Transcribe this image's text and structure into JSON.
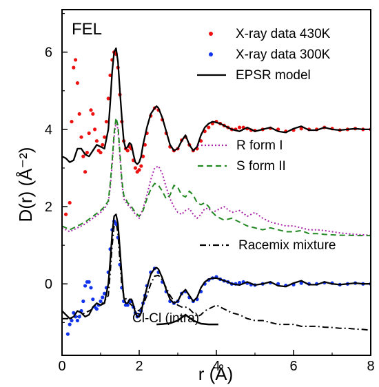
{
  "chart_data": {
    "type": "line",
    "panel_label": "FEL",
    "xlabel": "r (Å)",
    "ylabel": "D(r) (Å⁻²)",
    "xlim": [
      0,
      8
    ],
    "ylim": [
      -1.85,
      7.1
    ],
    "xticks": [
      0,
      2,
      4,
      6,
      8
    ],
    "yticks": [
      0,
      2,
      4,
      6
    ],
    "legend_upper": [
      {
        "label": "X-ray data 430K",
        "marker": "dot",
        "color": "#ee1111"
      },
      {
        "label": "X-ray data 300K",
        "marker": "dot",
        "color": "#1133ee"
      },
      {
        "label": "EPSR model",
        "line": "solid",
        "color": "#000000"
      }
    ],
    "legend_middle": [
      {
        "label": "R form I",
        "line": "dotted",
        "color": "#aa22aa"
      },
      {
        "label": "S form II",
        "line": "dashed",
        "color": "#228822"
      }
    ],
    "legend_lower": [
      {
        "label": "Racemix mixture",
        "line": "dashdot",
        "color": "#000000"
      }
    ],
    "annotation": "Cl-Cl (intra)",
    "cl_cl_curve": {
      "x": [
        2.45,
        2.6,
        2.8,
        3.0,
        3.2,
        3.4,
        3.6,
        3.8,
        4.05
      ],
      "y": [
        -1.05,
        -1.04,
        -1.02,
        -0.95,
        -0.8,
        -0.95,
        -1.03,
        -1.05,
        -1.05
      ]
    },
    "series": [
      {
        "name": "X-ray data 430K",
        "color": "#ee1111",
        "style": "dots",
        "x": [
          0.1,
          0.2,
          0.25,
          0.3,
          0.35,
          0.4,
          0.45,
          0.5,
          0.55,
          0.6,
          0.65,
          0.7,
          0.75,
          0.8,
          0.85,
          0.9,
          0.95,
          1.0,
          1.05,
          1.1,
          1.15,
          1.2,
          1.25,
          1.3,
          1.35,
          1.4,
          1.45,
          1.5,
          1.55,
          1.6,
          1.65,
          1.7,
          1.75,
          1.8,
          1.85,
          1.9,
          1.95,
          2.0,
          2.05,
          2.1,
          2.15,
          2.2,
          2.3,
          2.4,
          2.5,
          2.6,
          2.7,
          2.8,
          2.9,
          3.0,
          3.1,
          3.2,
          3.3,
          3.4,
          3.5,
          3.6,
          3.7,
          3.8,
          3.9,
          4.0,
          4.1,
          4.2,
          4.3,
          4.4,
          4.5,
          4.6,
          4.7,
          4.8,
          4.9,
          5.0,
          5.2,
          5.4,
          5.6,
          5.8,
          6.0,
          6.2,
          6.4,
          6.6,
          6.8,
          7.0,
          7.2,
          7.4,
          7.6,
          7.8,
          8.0
        ],
        "y": [
          1.8,
          2.1,
          4.2,
          5.6,
          5.8,
          5.2,
          4.4,
          3.8,
          3.3,
          2.9,
          3.4,
          3.9,
          4.5,
          4.4,
          4.0,
          3.7,
          3.45,
          3.4,
          3.6,
          3.8,
          4.2,
          4.8,
          5.4,
          5.8,
          6.0,
          5.95,
          5.6,
          4.9,
          4.2,
          3.7,
          3.5,
          3.45,
          3.55,
          3.5,
          3.2,
          3.0,
          2.9,
          2.95,
          3.05,
          3.3,
          3.6,
          3.9,
          4.35,
          4.55,
          4.5,
          4.25,
          3.9,
          3.55,
          3.45,
          3.5,
          3.72,
          3.8,
          3.6,
          3.45,
          3.5,
          3.7,
          3.95,
          4.05,
          4.15,
          4.2,
          4.15,
          4.1,
          4.05,
          4.0,
          4.0,
          4.05,
          4.05,
          4.02,
          3.98,
          3.97,
          4.0,
          4.03,
          4.0,
          3.95,
          3.98,
          4.02,
          4.0,
          4.0,
          4.05,
          4.02,
          3.98,
          4.0,
          4.02,
          4.0,
          4.0
        ]
      },
      {
        "name": "X-ray data 300K",
        "color": "#1133ee",
        "style": "dots",
        "x": [
          0.15,
          0.2,
          0.25,
          0.3,
          0.35,
          0.4,
          0.45,
          0.5,
          0.55,
          0.6,
          0.65,
          0.7,
          0.75,
          0.8,
          0.85,
          0.9,
          0.95,
          1.0,
          1.05,
          1.1,
          1.15,
          1.2,
          1.25,
          1.3,
          1.35,
          1.4,
          1.45,
          1.5,
          1.55,
          1.6,
          1.65,
          1.7,
          1.75,
          1.8,
          1.85,
          1.9,
          1.95,
          2.0,
          2.05,
          2.1,
          2.15,
          2.2,
          2.3,
          2.4,
          2.5,
          2.6,
          2.7,
          2.8,
          2.9,
          3.0,
          3.1,
          3.2,
          3.3,
          3.4,
          3.5,
          3.6,
          3.7,
          3.8,
          3.9,
          4.0,
          4.1,
          4.2,
          4.3,
          4.4,
          4.5,
          4.6,
          4.7,
          4.8,
          4.9,
          5.0,
          5.2,
          5.4,
          5.6,
          5.8,
          6.0,
          6.2,
          6.4,
          6.6,
          6.8,
          7.0,
          7.2,
          7.4,
          7.6,
          7.8,
          8.0
        ],
        "y": [
          -1.3,
          -1.05,
          -0.95,
          -0.75,
          -0.85,
          -0.95,
          -0.85,
          -0.7,
          -0.45,
          -0.05,
          0.05,
          0.05,
          -0.1,
          -0.4,
          -0.6,
          -0.65,
          -0.55,
          -0.45,
          -0.35,
          -0.25,
          -0.1,
          0.3,
          0.9,
          1.4,
          1.62,
          1.55,
          1.2,
          0.5,
          -0.1,
          -0.45,
          -0.55,
          -0.55,
          -0.45,
          -0.45,
          -0.6,
          -0.75,
          -0.85,
          -0.8,
          -0.7,
          -0.5,
          -0.3,
          -0.05,
          0.3,
          0.4,
          0.3,
          0.05,
          -0.2,
          -0.45,
          -0.5,
          -0.45,
          -0.25,
          -0.2,
          -0.35,
          -0.45,
          -0.4,
          -0.2,
          0.0,
          0.1,
          0.15,
          0.18,
          0.12,
          0.08,
          0.05,
          0.0,
          0.0,
          0.03,
          0.05,
          0.02,
          -0.02,
          -0.03,
          0.0,
          0.03,
          0.0,
          -0.04,
          -0.02,
          0.02,
          0.0,
          0.0,
          0.03,
          0.02,
          -0.02,
          0.0,
          0.02,
          0.0,
          0.0
        ]
      },
      {
        "name": "EPSR model",
        "color": "#000000",
        "style": "solid",
        "x": [
          0.0,
          0.1,
          0.2,
          0.3,
          0.4,
          0.5,
          0.6,
          0.7,
          0.8,
          0.9,
          1.0,
          1.1,
          1.2,
          1.25,
          1.3,
          1.35,
          1.4,
          1.45,
          1.5,
          1.55,
          1.6,
          1.65,
          1.7,
          1.75,
          1.8,
          1.85,
          1.9,
          1.95,
          2.0,
          2.05,
          2.1,
          2.2,
          2.3,
          2.4,
          2.45,
          2.5,
          2.6,
          2.7,
          2.8,
          2.9,
          3.0,
          3.1,
          3.2,
          3.3,
          3.4,
          3.5,
          3.6,
          3.7,
          3.8,
          3.9,
          4.0,
          4.1,
          4.2,
          4.3,
          4.4,
          4.6,
          4.8,
          5.0,
          5.2,
          5.4,
          5.6,
          5.8,
          6.0,
          6.2,
          6.4,
          6.6,
          6.8,
          7.0,
          7.2,
          7.4,
          7.6,
          7.8,
          8.0
        ],
        "y": [
          3.3,
          3.25,
          3.15,
          3.2,
          3.5,
          3.5,
          3.35,
          3.3,
          3.45,
          3.6,
          3.55,
          3.5,
          4.0,
          4.7,
          5.5,
          6.0,
          6.1,
          5.75,
          5.0,
          4.3,
          3.7,
          3.5,
          3.55,
          3.65,
          3.6,
          3.35,
          3.15,
          3.1,
          3.15,
          3.3,
          3.6,
          4.05,
          4.4,
          4.55,
          4.6,
          4.55,
          4.3,
          3.95,
          3.6,
          3.45,
          3.5,
          3.7,
          3.85,
          3.6,
          3.45,
          3.55,
          3.85,
          4.05,
          4.15,
          4.2,
          4.18,
          4.15,
          4.1,
          4.05,
          4.0,
          3.95,
          4.05,
          3.95,
          4.0,
          4.05,
          3.95,
          3.92,
          4.02,
          4.08,
          3.98,
          3.98,
          4.05,
          4.0,
          3.98,
          4.0,
          4.02,
          4.0,
          4.0
        ]
      },
      {
        "name": "EPSR model",
        "color": "#000000",
        "style": "solid",
        "x": [
          0.0,
          0.1,
          0.2,
          0.3,
          0.4,
          0.5,
          0.6,
          0.7,
          0.8,
          0.9,
          1.0,
          1.1,
          1.2,
          1.25,
          1.3,
          1.35,
          1.4,
          1.45,
          1.5,
          1.55,
          1.6,
          1.65,
          1.7,
          1.75,
          1.8,
          1.85,
          1.9,
          1.95,
          2.0,
          2.05,
          2.1,
          2.2,
          2.3,
          2.4,
          2.45,
          2.5,
          2.6,
          2.7,
          2.8,
          2.9,
          3.0,
          3.1,
          3.2,
          3.3,
          3.4,
          3.5,
          3.6,
          3.7,
          3.8,
          3.9,
          4.0,
          4.1,
          4.2,
          4.3,
          4.4,
          4.6,
          4.8,
          5.0,
          5.2,
          5.4,
          5.6,
          5.8,
          6.0,
          6.2,
          6.4,
          6.6,
          6.8,
          7.0,
          7.2,
          7.4,
          7.6,
          7.8,
          8.0
        ],
        "y": [
          -0.7,
          -0.8,
          -0.9,
          -0.85,
          -0.7,
          -0.75,
          -0.85,
          -0.8,
          -0.6,
          -0.5,
          -0.55,
          -0.5,
          0.0,
          0.6,
          1.3,
          1.75,
          1.8,
          1.55,
          0.9,
          0.2,
          -0.35,
          -0.5,
          -0.5,
          -0.4,
          -0.4,
          -0.55,
          -0.75,
          -0.85,
          -0.85,
          -0.75,
          -0.5,
          -0.1,
          0.25,
          0.4,
          0.42,
          0.38,
          0.15,
          -0.15,
          -0.4,
          -0.5,
          -0.45,
          -0.25,
          -0.15,
          -0.3,
          -0.45,
          -0.35,
          -0.1,
          0.05,
          0.12,
          0.15,
          0.15,
          0.12,
          0.08,
          0.05,
          0.0,
          -0.03,
          0.05,
          -0.03,
          0.0,
          0.05,
          -0.05,
          -0.07,
          0.02,
          0.08,
          -0.02,
          -0.02,
          0.05,
          0.0,
          -0.02,
          0.0,
          0.02,
          0.0,
          0.0
        ]
      },
      {
        "name": "R form I",
        "color": "#aa22aa",
        "style": "dotted",
        "x": [
          0.0,
          0.2,
          0.4,
          0.6,
          0.8,
          1.0,
          1.1,
          1.2,
          1.25,
          1.3,
          1.35,
          1.4,
          1.45,
          1.5,
          1.55,
          1.6,
          1.7,
          1.8,
          1.9,
          2.0,
          2.1,
          2.2,
          2.3,
          2.4,
          2.5,
          2.6,
          2.7,
          2.8,
          2.9,
          3.0,
          3.1,
          3.2,
          3.3,
          3.4,
          3.5,
          3.6,
          3.7,
          3.8,
          3.9,
          4.0,
          4.2,
          4.4,
          4.6,
          4.8,
          5.0,
          5.2,
          5.4,
          5.6,
          5.8,
          6.0,
          6.2,
          6.4,
          6.6,
          6.8,
          7.0,
          7.2,
          7.4,
          7.6,
          7.8,
          8.0
        ],
        "y": [
          1.45,
          1.35,
          1.45,
          1.55,
          1.7,
          1.85,
          1.95,
          2.1,
          2.5,
          3.1,
          3.8,
          4.2,
          4.0,
          3.3,
          2.6,
          2.2,
          2.05,
          1.95,
          1.8,
          1.7,
          1.95,
          2.3,
          2.7,
          3.0,
          3.05,
          2.85,
          2.5,
          2.2,
          2.0,
          1.85,
          1.8,
          1.9,
          1.95,
          1.8,
          1.7,
          1.8,
          1.95,
          1.95,
          1.85,
          1.9,
          2.0,
          1.85,
          1.9,
          1.75,
          1.85,
          1.7,
          1.6,
          1.55,
          1.5,
          1.5,
          1.45,
          1.4,
          1.4,
          1.38,
          1.35,
          1.32,
          1.3,
          1.28,
          1.27,
          1.26
        ]
      },
      {
        "name": "S form II",
        "color": "#228822",
        "style": "dashed",
        "x": [
          0.0,
          0.2,
          0.4,
          0.6,
          0.8,
          1.0,
          1.1,
          1.2,
          1.25,
          1.3,
          1.35,
          1.4,
          1.45,
          1.5,
          1.55,
          1.6,
          1.7,
          1.8,
          1.9,
          2.0,
          2.1,
          2.2,
          2.3,
          2.4,
          2.5,
          2.6,
          2.7,
          2.8,
          2.9,
          3.0,
          3.1,
          3.2,
          3.3,
          3.4,
          3.5,
          3.6,
          3.7,
          3.8,
          3.9,
          4.0,
          4.2,
          4.4,
          4.6,
          4.8,
          5.0,
          5.2,
          5.4,
          5.6,
          5.8,
          6.0,
          6.2,
          6.4,
          6.6,
          6.8,
          7.0,
          7.2,
          7.4,
          7.6,
          7.8,
          8.0
        ],
        "y": [
          1.5,
          1.4,
          1.5,
          1.6,
          1.75,
          1.9,
          2.0,
          2.15,
          2.6,
          3.2,
          3.9,
          4.3,
          4.1,
          3.4,
          2.7,
          2.3,
          2.1,
          2.0,
          1.85,
          1.75,
          1.9,
          2.2,
          2.45,
          2.6,
          2.55,
          2.4,
          2.2,
          2.3,
          2.55,
          2.5,
          2.3,
          2.25,
          2.4,
          2.3,
          2.1,
          2.05,
          2.1,
          2.0,
          1.85,
          1.75,
          1.65,
          1.7,
          1.6,
          1.5,
          1.45,
          1.4,
          1.45,
          1.4,
          1.35,
          1.35,
          1.38,
          1.3,
          1.3,
          1.28,
          1.27,
          1.26,
          1.26,
          1.25,
          1.25,
          1.25
        ]
      },
      {
        "name": "Racemix mixture",
        "color": "#000000",
        "style": "dashdot",
        "x": [
          0.0,
          0.2,
          0.4,
          0.6,
          0.8,
          1.0,
          1.1,
          1.2,
          1.25,
          1.3,
          1.35,
          1.4,
          1.45,
          1.5,
          1.55,
          1.6,
          1.7,
          1.8,
          1.9,
          2.0,
          2.1,
          2.2,
          2.3,
          2.4,
          2.5,
          2.6,
          2.7,
          2.8,
          2.9,
          3.0,
          3.1,
          3.2,
          3.3,
          3.4,
          3.5,
          3.6,
          3.7,
          3.8,
          3.9,
          4.0,
          4.2,
          4.4,
          4.6,
          4.8,
          5.0,
          5.2,
          5.4,
          5.6,
          5.8,
          6.0,
          6.2,
          6.4,
          6.6,
          6.8,
          7.0,
          7.2,
          7.4,
          7.6,
          7.8,
          8.0
        ],
        "y": [
          -0.9,
          -0.9,
          -0.85,
          -0.75,
          -0.65,
          -0.55,
          -0.45,
          -0.3,
          0.3,
          1.0,
          1.5,
          1.6,
          1.3,
          0.6,
          -0.05,
          -0.3,
          -0.45,
          -0.55,
          -0.65,
          -0.7,
          -0.55,
          -0.3,
          0.0,
          0.2,
          0.22,
          0.1,
          -0.1,
          -0.3,
          -0.45,
          -0.55,
          -0.6,
          -0.6,
          -0.65,
          -0.75,
          -0.85,
          -0.8,
          -0.7,
          -0.65,
          -0.6,
          -0.55,
          -0.65,
          -0.75,
          -0.8,
          -0.9,
          -0.95,
          -0.95,
          -1.0,
          -1.05,
          -1.05,
          -1.05,
          -1.1,
          -1.1,
          -1.1,
          -1.12,
          -1.13,
          -1.15,
          -1.15,
          -1.17,
          -1.18,
          -1.2
        ]
      }
    ]
  }
}
